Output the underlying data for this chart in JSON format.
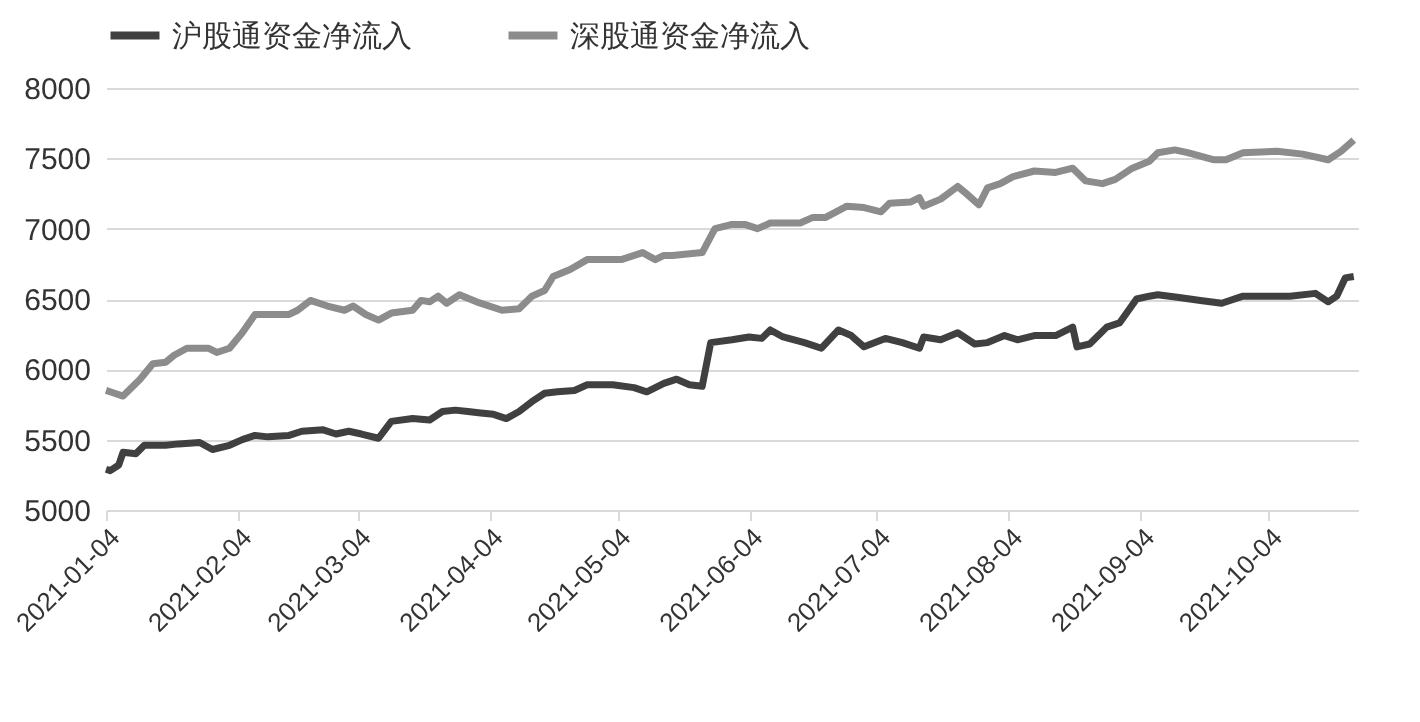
{
  "chart_data": {
    "type": "line",
    "xlim": [
      "2021-01-04",
      "2021-10-25"
    ],
    "xticks": [
      "2021-01-04",
      "2021-02-04",
      "2021-03-04",
      "2021-04-04",
      "2021-05-04",
      "2021-06-04",
      "2021-07-04",
      "2021-08-04",
      "2021-09-04",
      "2021-10-04"
    ],
    "ylim": [
      5000,
      8000
    ],
    "yticks": [
      5000,
      5500,
      6000,
      6500,
      7000,
      7500,
      8000
    ],
    "grid": "y",
    "legend": "top",
    "line_style": "solid",
    "marker": "none",
    "series": [
      {
        "name": "沪股通资金净流入",
        "color": "#404040",
        "x": [
          "2021-01-04",
          "2021-01-05",
          "2021-01-07",
          "2021-01-08",
          "2021-01-11",
          "2021-01-13",
          "2021-01-18",
          "2021-01-21",
          "2021-01-26",
          "2021-01-29",
          "2021-02-02",
          "2021-02-05",
          "2021-02-08",
          "2021-02-11",
          "2021-02-16",
          "2021-02-19",
          "2021-02-24",
          "2021-02-27",
          "2021-03-02",
          "2021-03-05",
          "2021-03-09",
          "2021-03-12",
          "2021-03-17",
          "2021-03-21",
          "2021-03-24",
          "2021-03-27",
          "2021-03-30",
          "2021-04-02",
          "2021-04-05",
          "2021-04-08",
          "2021-04-11",
          "2021-04-14",
          "2021-04-17",
          "2021-04-20",
          "2021-04-24",
          "2021-04-27",
          "2021-05-03",
          "2021-05-08",
          "2021-05-11",
          "2021-05-15",
          "2021-05-18",
          "2021-05-21",
          "2021-05-24",
          "2021-05-26",
          "2021-05-31",
          "2021-06-04",
          "2021-06-07",
          "2021-06-09",
          "2021-06-12",
          "2021-06-17",
          "2021-06-21",
          "2021-06-25",
          "2021-06-28",
          "2021-07-01",
          "2021-07-06",
          "2021-07-10",
          "2021-07-14",
          "2021-07-15",
          "2021-07-19",
          "2021-07-23",
          "2021-07-27",
          "2021-07-30",
          "2021-08-03",
          "2021-08-06",
          "2021-08-10",
          "2021-08-15",
          "2021-08-19",
          "2021-08-20",
          "2021-08-23",
          "2021-08-27",
          "2021-08-30",
          "2021-09-03",
          "2021-09-06",
          "2021-09-08",
          "2021-09-13",
          "2021-09-18",
          "2021-09-23",
          "2021-09-28",
          "2021-10-09",
          "2021-10-15",
          "2021-10-18",
          "2021-10-20",
          "2021-10-22",
          "2021-10-24"
        ],
        "values": [
          5290,
          5280,
          5320,
          5410,
          5400,
          5460,
          5460,
          5470,
          5480,
          5430,
          5460,
          5500,
          5530,
          5520,
          5530,
          5560,
          5570,
          5540,
          5560,
          5540,
          5510,
          5630,
          5650,
          5640,
          5700,
          5710,
          5700,
          5690,
          5680,
          5650,
          5700,
          5770,
          5830,
          5840,
          5850,
          5890,
          5890,
          5870,
          5840,
          5900,
          5930,
          5890,
          5880,
          6190,
          6210,
          6230,
          6220,
          6280,
          6230,
          6190,
          6150,
          6280,
          6240,
          6160,
          6220,
          6190,
          6150,
          6230,
          6210,
          6260,
          6180,
          6190,
          6240,
          6210,
          6240,
          6240,
          6300,
          6160,
          6180,
          6300,
          6330,
          6500,
          6520,
          6530,
          6510,
          6490,
          6470,
          6520,
          6520,
          6540,
          6480,
          6520,
          6650,
          6660
        ]
      },
      {
        "name": "深股通资金净流入",
        "color": "#8c8c8c",
        "x": [
          "2021-01-04",
          "2021-01-06",
          "2021-01-08",
          "2021-01-12",
          "2021-01-15",
          "2021-01-18",
          "2021-01-20",
          "2021-01-23",
          "2021-01-26",
          "2021-01-28",
          "2021-01-30",
          "2021-02-02",
          "2021-02-05",
          "2021-02-08",
          "2021-02-11",
          "2021-02-16",
          "2021-02-18",
          "2021-02-21",
          "2021-02-25",
          "2021-03-01",
          "2021-03-03",
          "2021-03-06",
          "2021-03-09",
          "2021-03-12",
          "2021-03-17",
          "2021-03-19",
          "2021-03-21",
          "2021-03-23",
          "2021-03-25",
          "2021-03-28",
          "2021-04-01",
          "2021-04-07",
          "2021-04-11",
          "2021-04-14",
          "2021-04-17",
          "2021-04-19",
          "2021-04-23",
          "2021-04-27",
          "2021-05-05",
          "2021-05-10",
          "2021-05-13",
          "2021-05-15",
          "2021-05-17",
          "2021-05-24",
          "2021-05-27",
          "2021-05-31",
          "2021-06-03",
          "2021-06-06",
          "2021-06-09",
          "2021-06-16",
          "2021-06-19",
          "2021-06-22",
          "2021-06-27",
          "2021-07-01",
          "2021-07-05",
          "2021-07-07",
          "2021-07-12",
          "2021-07-14",
          "2021-07-15",
          "2021-07-19",
          "2021-07-23",
          "2021-07-25",
          "2021-07-28",
          "2021-07-30",
          "2021-08-02",
          "2021-08-05",
          "2021-08-10",
          "2021-08-15",
          "2021-08-19",
          "2021-08-22",
          "2021-08-26",
          "2021-08-29",
          "2021-09-02",
          "2021-09-06",
          "2021-09-08",
          "2021-09-12",
          "2021-09-15",
          "2021-09-21",
          "2021-09-24",
          "2021-09-28",
          "2021-10-06",
          "2021-10-12",
          "2021-10-18",
          "2021-10-21",
          "2021-10-24"
        ],
        "values": [
          5850,
          5830,
          5810,
          5930,
          6040,
          6050,
          6100,
          6150,
          6150,
          6150,
          6120,
          6150,
          6260,
          6390,
          6390,
          6390,
          6420,
          6490,
          6450,
          6420,
          6450,
          6390,
          6350,
          6400,
          6420,
          6490,
          6480,
          6520,
          6470,
          6530,
          6480,
          6420,
          6430,
          6520,
          6560,
          6660,
          6710,
          6780,
          6780,
          6830,
          6780,
          6810,
          6810,
          6830,
          7000,
          7030,
          7030,
          7000,
          7040,
          7040,
          7080,
          7080,
          7160,
          7150,
          7120,
          7180,
          7190,
          7220,
          7160,
          7210,
          7300,
          7250,
          7170,
          7290,
          7320,
          7370,
          7410,
          7400,
          7430,
          7340,
          7320,
          7350,
          7430,
          7480,
          7540,
          7560,
          7540,
          7490,
          7490,
          7540,
          7550,
          7530,
          7490,
          7550,
          7630
        ]
      }
    ]
  }
}
